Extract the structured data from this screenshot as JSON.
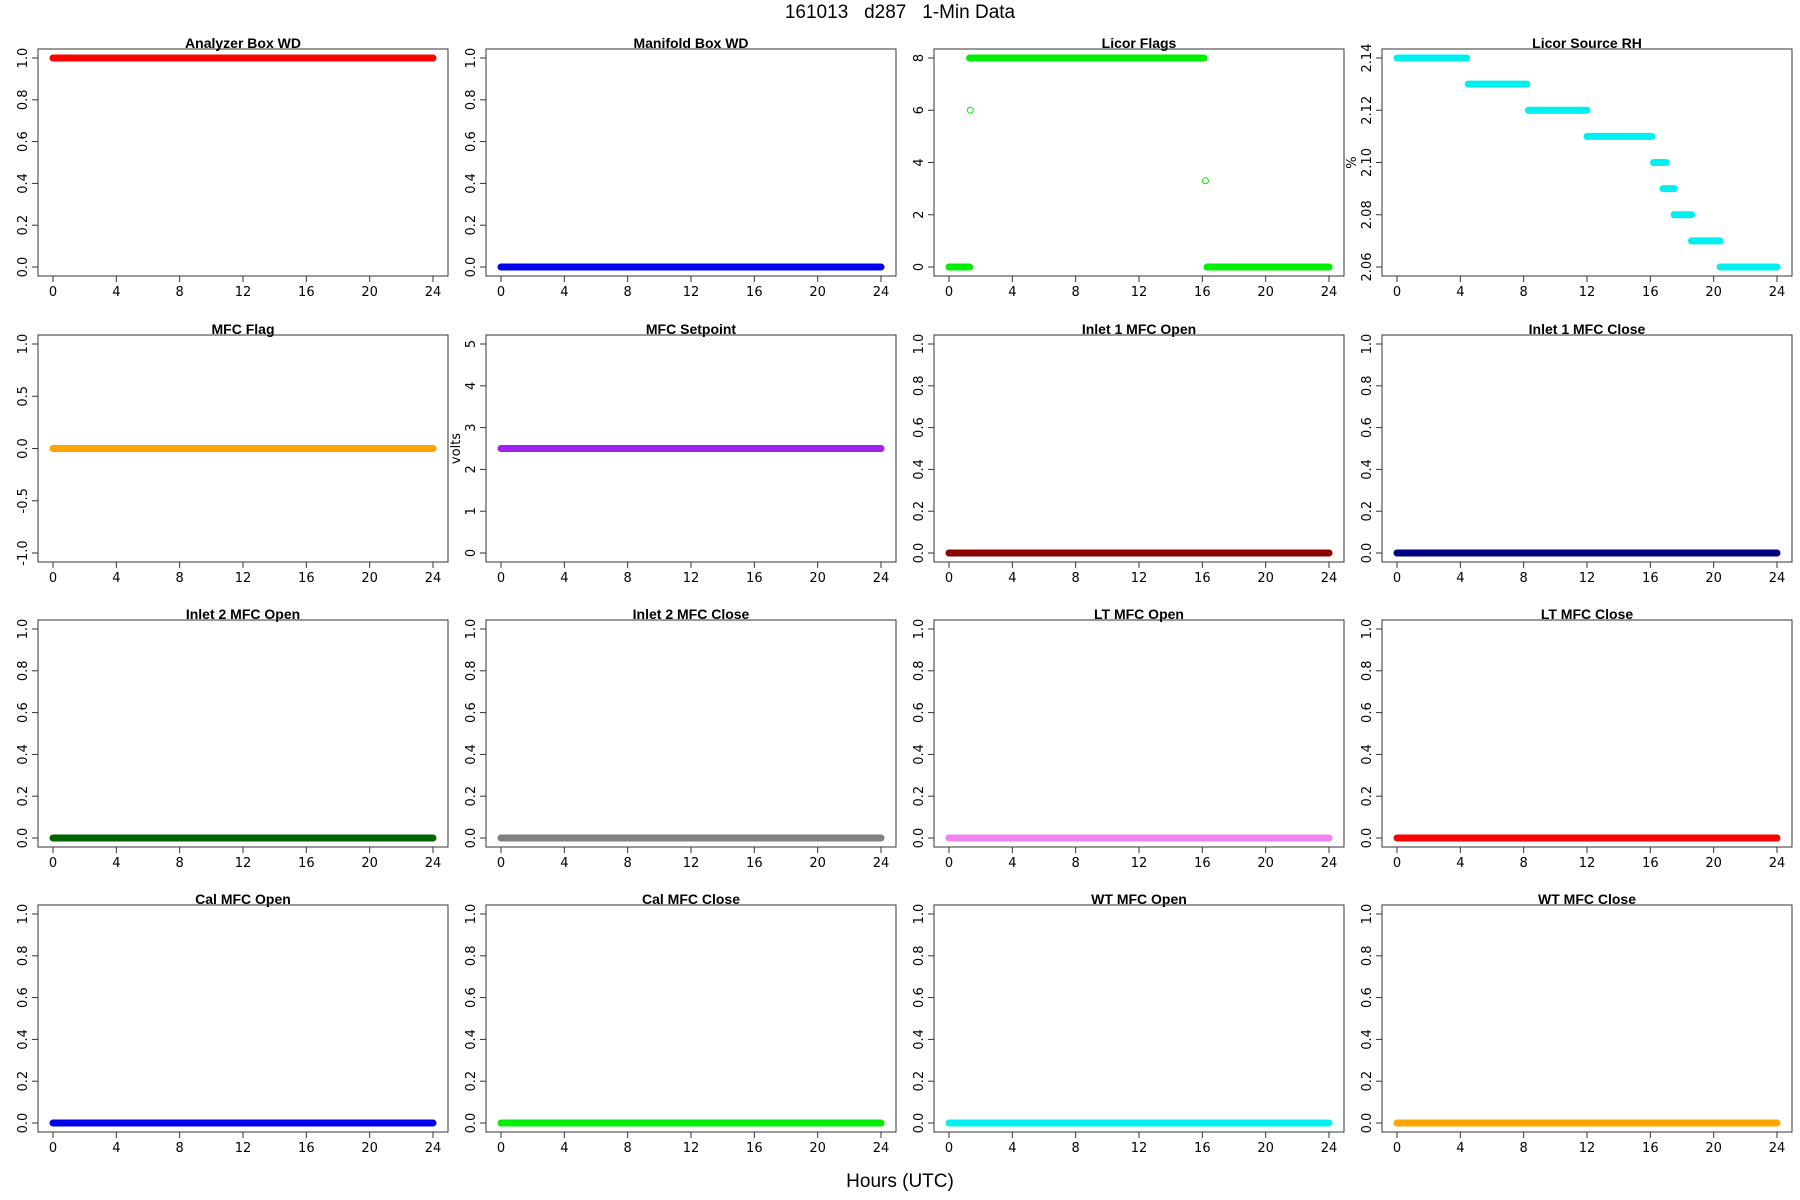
{
  "title": "161013   d287   1-Min Data",
  "xlabel": "Hours (UTC)",
  "chart_data": [
    {
      "type": "scatter",
      "title": "Analyzer Box WD",
      "color": "#ff0000",
      "xlim": [
        0,
        24
      ],
      "ylim": [
        0,
        1
      ],
      "xticks": [
        0,
        4,
        8,
        12,
        16,
        20,
        24
      ],
      "yticks": [
        "0.0",
        "0.2",
        "0.4",
        "0.6",
        "0.8",
        "1.0"
      ],
      "ylabel": "",
      "segments": [
        {
          "x0": 0,
          "x1": 24,
          "y": 1
        }
      ],
      "points": []
    },
    {
      "type": "scatter",
      "title": "Manifold Box WD",
      "color": "#0000ee",
      "xlim": [
        0,
        24
      ],
      "ylim": [
        0,
        1
      ],
      "xticks": [
        0,
        4,
        8,
        12,
        16,
        20,
        24
      ],
      "yticks": [
        "0.0",
        "0.2",
        "0.4",
        "0.6",
        "0.8",
        "1.0"
      ],
      "ylabel": "",
      "segments": [
        {
          "x0": 0,
          "x1": 24,
          "y": 0
        }
      ],
      "points": []
    },
    {
      "type": "scatter",
      "title": "Licor Flags",
      "color": "#00ee00",
      "xlim": [
        0,
        24
      ],
      "ylim": [
        0,
        8
      ],
      "xticks": [
        0,
        4,
        8,
        12,
        16,
        20,
        24
      ],
      "yticks": [
        "0",
        "2",
        "4",
        "6",
        "8"
      ],
      "ylabel": "",
      "segments": [
        {
          "x0": 0,
          "x1": 1.3,
          "y": 0
        },
        {
          "x0": 1.3,
          "x1": 16.1,
          "y": 8
        },
        {
          "x0": 16.3,
          "x1": 24,
          "y": 0
        }
      ],
      "points": [
        {
          "x": 1.35,
          "y": 6
        },
        {
          "x": 16.2,
          "y": 3.3
        }
      ]
    },
    {
      "type": "scatter",
      "title": "Licor Source RH",
      "color": "#00f0f0",
      "xlim": [
        0,
        24
      ],
      "ylim": [
        2.06,
        2.14
      ],
      "xticks": [
        0,
        4,
        8,
        12,
        16,
        20,
        24
      ],
      "yticks": [
        "2.06",
        "2.08",
        "2.10",
        "2.12",
        "2.14"
      ],
      "ylabel": "%",
      "segments": [
        {
          "x0": 0,
          "x1": 4.4,
          "y": 2.14
        },
        {
          "x0": 4.5,
          "x1": 8.2,
          "y": 2.13
        },
        {
          "x0": 8.3,
          "x1": 12.0,
          "y": 2.12
        },
        {
          "x0": 12.0,
          "x1": 16.1,
          "y": 2.11
        },
        {
          "x0": 16.2,
          "x1": 17.0,
          "y": 2.1
        },
        {
          "x0": 16.8,
          "x1": 17.5,
          "y": 2.09
        },
        {
          "x0": 17.5,
          "x1": 18.6,
          "y": 2.08
        },
        {
          "x0": 18.6,
          "x1": 20.4,
          "y": 2.07
        },
        {
          "x0": 20.4,
          "x1": 24,
          "y": 2.06
        }
      ],
      "points": []
    },
    {
      "type": "scatter",
      "title": "MFC Flag",
      "color": "#ffa500",
      "xlim": [
        0,
        24
      ],
      "ylim": [
        -1,
        1
      ],
      "xticks": [
        0,
        4,
        8,
        12,
        16,
        20,
        24
      ],
      "yticks": [
        "-1.0",
        "-0.5",
        "0.0",
        "0.5",
        "1.0"
      ],
      "ylabel": "",
      "segments": [
        {
          "x0": 0,
          "x1": 24,
          "y": 0
        }
      ],
      "points": []
    },
    {
      "type": "scatter",
      "title": "MFC Setpoint",
      "color": "#a020f0",
      "xlim": [
        0,
        24
      ],
      "ylim": [
        0,
        5
      ],
      "xticks": [
        0,
        4,
        8,
        12,
        16,
        20,
        24
      ],
      "yticks": [
        "0",
        "1",
        "2",
        "3",
        "4",
        "5"
      ],
      "ylabel": "volts",
      "segments": [
        {
          "x0": 0,
          "x1": 24,
          "y": 2.5
        }
      ],
      "points": []
    },
    {
      "type": "scatter",
      "title": "Inlet 1 MFC Open",
      "color": "#8b0000",
      "xlim": [
        0,
        24
      ],
      "ylim": [
        0,
        1
      ],
      "xticks": [
        0,
        4,
        8,
        12,
        16,
        20,
        24
      ],
      "yticks": [
        "0.0",
        "0.2",
        "0.4",
        "0.6",
        "0.8",
        "1.0"
      ],
      "ylabel": "",
      "segments": [
        {
          "x0": 0,
          "x1": 24,
          "y": 0
        }
      ],
      "points": []
    },
    {
      "type": "scatter",
      "title": "Inlet 1 MFC Close",
      "color": "#000080",
      "xlim": [
        0,
        24
      ],
      "ylim": [
        0,
        1
      ],
      "xticks": [
        0,
        4,
        8,
        12,
        16,
        20,
        24
      ],
      "yticks": [
        "0.0",
        "0.2",
        "0.4",
        "0.6",
        "0.8",
        "1.0"
      ],
      "ylabel": "",
      "segments": [
        {
          "x0": 0,
          "x1": 24,
          "y": 0
        }
      ],
      "points": []
    },
    {
      "type": "scatter",
      "title": "Inlet 2 MFC Open",
      "color": "#006400",
      "xlim": [
        0,
        24
      ],
      "ylim": [
        0,
        1
      ],
      "xticks": [
        0,
        4,
        8,
        12,
        16,
        20,
        24
      ],
      "yticks": [
        "0.0",
        "0.2",
        "0.4",
        "0.6",
        "0.8",
        "1.0"
      ],
      "ylabel": "",
      "segments": [
        {
          "x0": 0,
          "x1": 24,
          "y": 0
        }
      ],
      "points": []
    },
    {
      "type": "scatter",
      "title": "Inlet 2 MFC Close",
      "color": "#808080",
      "xlim": [
        0,
        24
      ],
      "ylim": [
        0,
        1
      ],
      "xticks": [
        0,
        4,
        8,
        12,
        16,
        20,
        24
      ],
      "yticks": [
        "0.0",
        "0.2",
        "0.4",
        "0.6",
        "0.8",
        "1.0"
      ],
      "ylabel": "",
      "segments": [
        {
          "x0": 0,
          "x1": 24,
          "y": 0
        }
      ],
      "points": []
    },
    {
      "type": "scatter",
      "title": "LT MFC Open",
      "color": "#ee82ee",
      "xlim": [
        0,
        24
      ],
      "ylim": [
        0,
        1
      ],
      "xticks": [
        0,
        4,
        8,
        12,
        16,
        20,
        24
      ],
      "yticks": [
        "0.0",
        "0.2",
        "0.4",
        "0.6",
        "0.8",
        "1.0"
      ],
      "ylabel": "",
      "segments": [
        {
          "x0": 0,
          "x1": 24,
          "y": 0
        }
      ],
      "points": []
    },
    {
      "type": "scatter",
      "title": "LT MFC Close",
      "color": "#ff0000",
      "xlim": [
        0,
        24
      ],
      "ylim": [
        0,
        1
      ],
      "xticks": [
        0,
        4,
        8,
        12,
        16,
        20,
        24
      ],
      "yticks": [
        "0.0",
        "0.2",
        "0.4",
        "0.6",
        "0.8",
        "1.0"
      ],
      "ylabel": "",
      "segments": [
        {
          "x0": 0,
          "x1": 24,
          "y": 0
        }
      ],
      "points": []
    },
    {
      "type": "scatter",
      "title": "Cal MFC Open",
      "color": "#0000ee",
      "xlim": [
        0,
        24
      ],
      "ylim": [
        0,
        1
      ],
      "xticks": [
        0,
        4,
        8,
        12,
        16,
        20,
        24
      ],
      "yticks": [
        "0.0",
        "0.2",
        "0.4",
        "0.6",
        "0.8",
        "1.0"
      ],
      "ylabel": "",
      "segments": [
        {
          "x0": 0,
          "x1": 24,
          "y": 0
        }
      ],
      "points": []
    },
    {
      "type": "scatter",
      "title": "Cal MFC Close",
      "color": "#00ee00",
      "xlim": [
        0,
        24
      ],
      "ylim": [
        0,
        1
      ],
      "xticks": [
        0,
        4,
        8,
        12,
        16,
        20,
        24
      ],
      "yticks": [
        "0.0",
        "0.2",
        "0.4",
        "0.6",
        "0.8",
        "1.0"
      ],
      "ylabel": "",
      "segments": [
        {
          "x0": 0,
          "x1": 24,
          "y": 0
        }
      ],
      "points": []
    },
    {
      "type": "scatter",
      "title": "WT MFC Open",
      "color": "#00f0f0",
      "xlim": [
        0,
        24
      ],
      "ylim": [
        0,
        1
      ],
      "xticks": [
        0,
        4,
        8,
        12,
        16,
        20,
        24
      ],
      "yticks": [
        "0.0",
        "0.2",
        "0.4",
        "0.6",
        "0.8",
        "1.0"
      ],
      "ylabel": "",
      "segments": [
        {
          "x0": 0,
          "x1": 24,
          "y": 0
        }
      ],
      "points": []
    },
    {
      "type": "scatter",
      "title": "WT MFC Close",
      "color": "#ffa500",
      "xlim": [
        0,
        24
      ],
      "ylim": [
        0,
        1
      ],
      "xticks": [
        0,
        4,
        8,
        12,
        16,
        20,
        24
      ],
      "yticks": [
        "0.0",
        "0.2",
        "0.4",
        "0.6",
        "0.8",
        "1.0"
      ],
      "ylabel": "",
      "segments": [
        {
          "x0": 0,
          "x1": 24,
          "y": 0
        }
      ],
      "points": []
    }
  ]
}
